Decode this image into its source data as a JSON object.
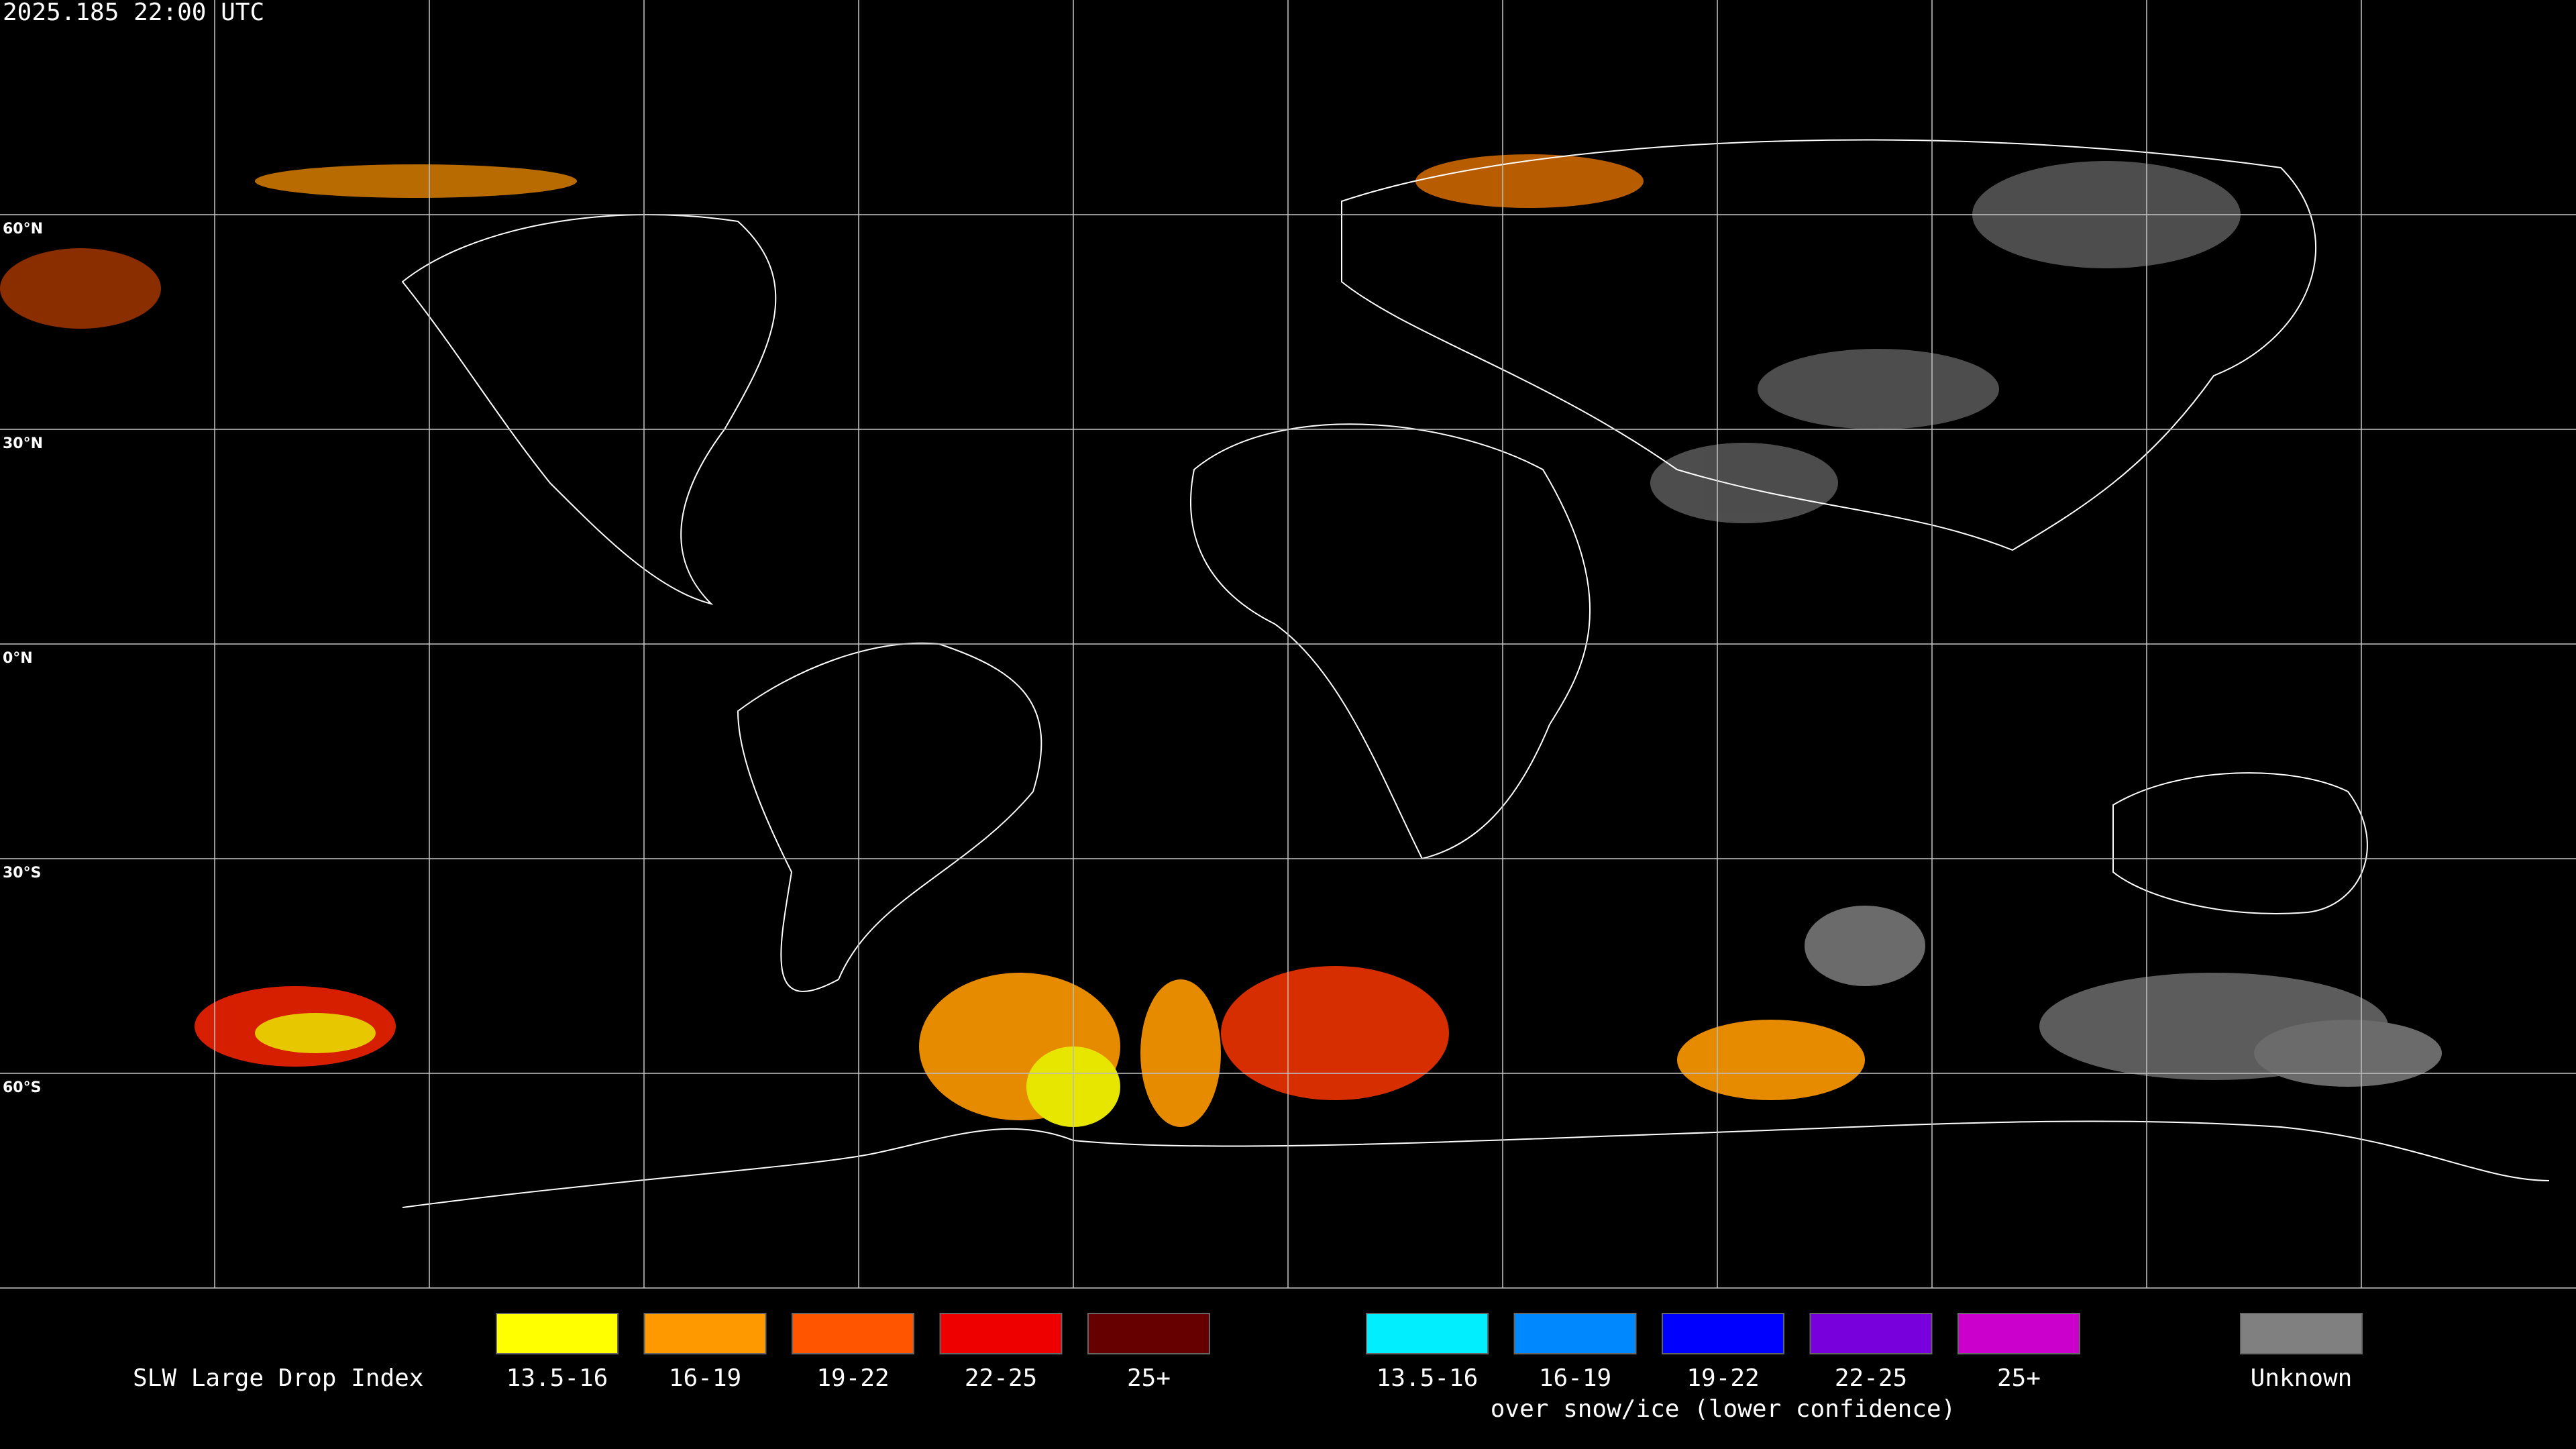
{
  "header": {
    "timestamp": "2025.185 22:00 UTC"
  },
  "grid": {
    "latitude_labels": [
      "60°N",
      "30°N",
      "0°N",
      "30°S",
      "60°S"
    ]
  },
  "legend": {
    "title": "SLW Large Drop Index",
    "groups": [
      {
        "items": [
          {
            "label": "13.5-16",
            "color": "#ffff00"
          },
          {
            "label": "16-19",
            "color": "#ff9900"
          },
          {
            "label": "19-22",
            "color": "#ff5500"
          },
          {
            "label": "22-25",
            "color": "#ee0000"
          },
          {
            "label": "25+",
            "color": "#660000"
          }
        ]
      },
      {
        "items": [
          {
            "label": "13.5-16",
            "color": "#00eeff"
          },
          {
            "label": "16-19",
            "color": "#0088ff"
          },
          {
            "label": "19-22",
            "color": "#0000ff"
          },
          {
            "label": "22-25",
            "color": "#7700dd"
          },
          {
            "label": "25+",
            "color": "#cc00cc"
          }
        ],
        "caption": "over snow/ice (lower confidence)"
      },
      {
        "items": [
          {
            "label": "Unknown",
            "color": "#808080"
          }
        ]
      }
    ]
  }
}
